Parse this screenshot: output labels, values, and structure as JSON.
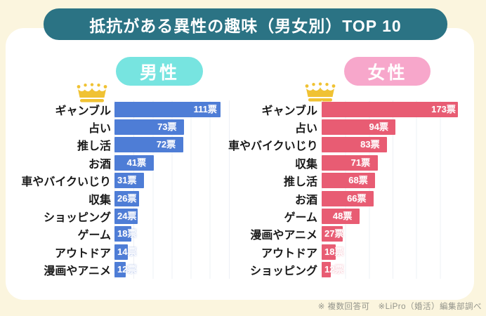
{
  "page": {
    "title": "抵抗がある異性の趣味（男女別）TOP 10",
    "footnote": "※ 複数回答可　※LiPro（婚活）編集部調べ"
  },
  "colors": {
    "background": "#FBF5DE",
    "panel": "#FFFFFF",
    "title_bar_teal": "#2B7384",
    "male_header_cyan": "#77E4E0",
    "male_bar_blue": "#4E7DD6",
    "female_header_pink": "#F7A7CB",
    "female_bar_pink": "#E85C73",
    "crown_gold": "#F0C233",
    "gridline": "#EDF0F5"
  },
  "chart_data": [
    {
      "type": "bar",
      "orientation": "horizontal",
      "title": "男性",
      "unit": "票",
      "categories": [
        "ギャンブル",
        "占い",
        "推し活",
        "お酒",
        "車やバイクいじり",
        "収集",
        "ショッピング",
        "ゲーム",
        "アウトドア",
        "漫画やアニメ"
      ],
      "values": [
        111,
        73,
        72,
        41,
        31,
        26,
        24,
        18,
        14,
        12
      ],
      "value_labels": [
        "111票",
        "73票",
        "72票",
        "41票",
        "31票",
        "26票",
        "24票",
        "18票",
        "14票",
        "12票"
      ],
      "bar_color": "#4E7DD6",
      "xlim": [
        0,
        140
      ],
      "tick_interval": 20,
      "grid": true,
      "legend": "none"
    },
    {
      "type": "bar",
      "orientation": "horizontal",
      "title": "女性",
      "unit": "票",
      "categories": [
        "ギャンブル",
        "占い",
        "車やバイクいじり",
        "収集",
        "推し活",
        "お酒",
        "ゲーム",
        "漫画やアニメ",
        "アウトドア",
        "ショッピング"
      ],
      "values": [
        173,
        94,
        83,
        71,
        68,
        66,
        48,
        27,
        18,
        12
      ],
      "value_labels": [
        "173票",
        "94票",
        "83票",
        "71票",
        "68票",
        "66票",
        "48票",
        "27票",
        "18票",
        "12票"
      ],
      "bar_color": "#E85C73",
      "xlim": [
        0,
        180
      ],
      "tick_interval": 30,
      "grid": true,
      "legend": "none"
    }
  ]
}
